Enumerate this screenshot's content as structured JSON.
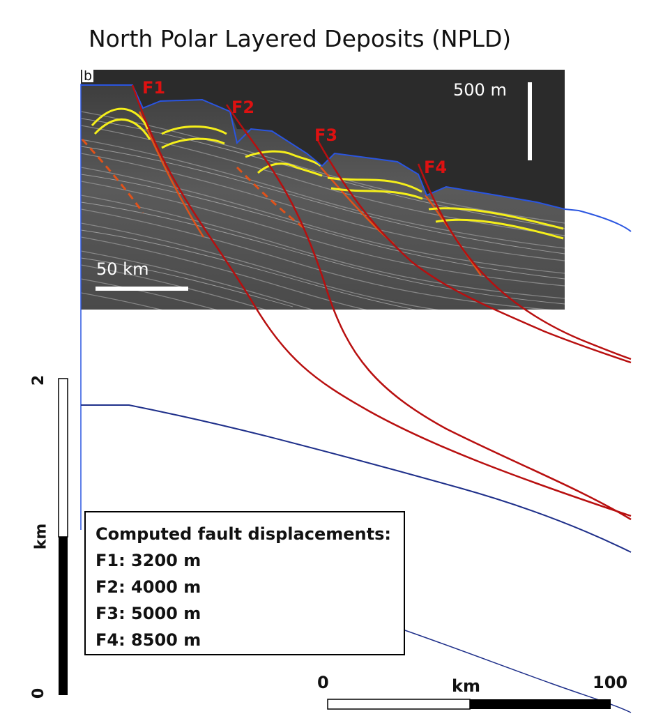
{
  "title": "North Polar Layered Deposits (NPLD)",
  "panel_label": "b",
  "faults": [
    {
      "label": "F1"
    },
    {
      "label": "F2"
    },
    {
      "label": "F3"
    },
    {
      "label": "F4"
    }
  ],
  "image_scale": {
    "vertical": "500 m",
    "horizontal": "50 km"
  },
  "vertical_scale": {
    "top": "2",
    "unit": "km",
    "bottom": "0"
  },
  "horizontal_scale": {
    "left": "0",
    "unit": "km",
    "right": "100"
  },
  "legend": {
    "heading": "Computed fault displacements:",
    "lines": [
      "F1: 3200 m",
      "F2: 4000 m",
      "F3: 5000 m",
      "F4: 8500 m"
    ]
  },
  "colors": {
    "fault": "#b80f0f",
    "surface_model": "#1e2f8a",
    "surface_observed": "#2a55e0",
    "layer": "#f5ef1a"
  }
}
